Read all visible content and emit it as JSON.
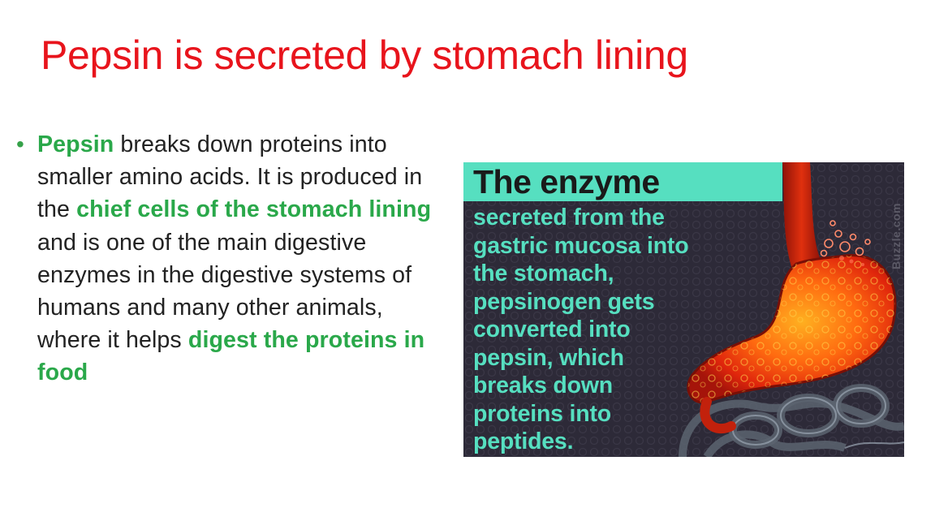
{
  "slide": {
    "title": "Pepsin is secreted by stomach lining",
    "bullet_symbol": "•",
    "bullet": [
      {
        "text": "Pepsin",
        "highlight": true
      },
      {
        "text": " breaks down proteins into smaller amino acids. It is produced in the ",
        "highlight": false
      },
      {
        "text": "chief cells of the stomach lining",
        "highlight": true
      },
      {
        "text": " and is one of the main digestive enzymes in the digestive systems of humans and many other animals, where it helps ",
        "highlight": false
      },
      {
        "text": "digest the proteins in food",
        "highlight": true
      }
    ]
  },
  "infographic": {
    "heading": "The enzyme",
    "body_lines": [
      "secreted from the",
      "gastric mucosa into",
      "the stomach,",
      "pepsinogen gets",
      "converted into",
      "pepsin, which",
      "breaks down",
      "proteins into",
      "peptides."
    ],
    "watermark": "Buzzle.com"
  },
  "colors": {
    "title": "#e8141c",
    "highlight": "#2aa84a",
    "body_text": "#222222",
    "infographic_accent": "#56dfc0",
    "infographic_background": "#2d2a38"
  }
}
